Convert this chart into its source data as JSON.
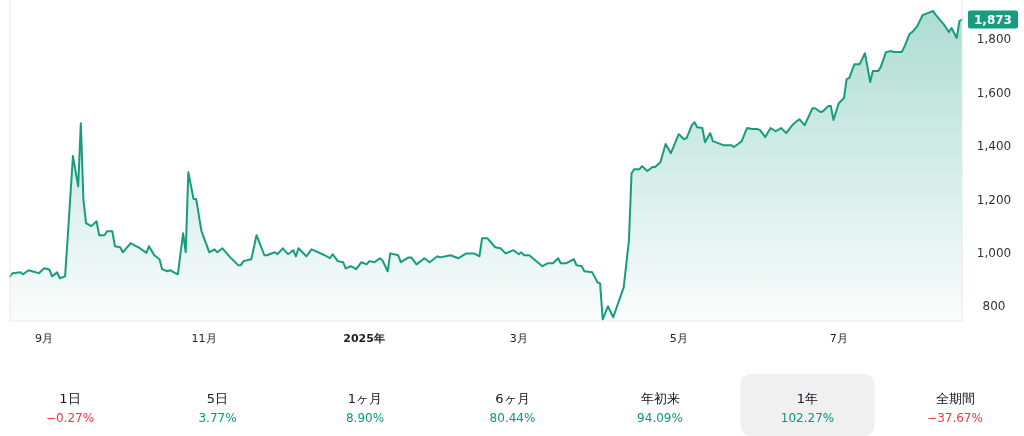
{
  "chart_data": [
    {
      "type": "area",
      "x": [
        "2024-08-19",
        "2024-08-20",
        "2024-08-23",
        "2024-08-24",
        "2024-08-26",
        "2024-08-30",
        "2024-09-01",
        "2024-09-03",
        "2024-09-04",
        "2024-09-06",
        "2024-09-07",
        "2024-09-09",
        "2024-09-10",
        "2024-09-12",
        "2024-09-14",
        "2024-09-15",
        "2024-09-16",
        "2024-09-17",
        "2024-09-19",
        "2024-09-21",
        "2024-09-22",
        "2024-09-24",
        "2024-09-25",
        "2024-09-27",
        "2024-09-28",
        "2024-09-30",
        "2024-10-01",
        "2024-10-04",
        "2024-10-06",
        "2024-10-07",
        "2024-10-10",
        "2024-10-11",
        "2024-10-13",
        "2024-10-15",
        "2024-10-16",
        "2024-10-18",
        "2024-10-19",
        "2024-10-21",
        "2024-10-22",
        "2024-10-24",
        "2024-10-25",
        "2024-10-26",
        "2024-10-28",
        "2024-10-29",
        "2024-10-31",
        "2024-11-03",
        "2024-11-05",
        "2024-11-06",
        "2024-11-08",
        "2024-11-11",
        "2024-11-14",
        "2024-11-15",
        "2024-11-16",
        "2024-11-19",
        "2024-11-21",
        "2024-11-24",
        "2024-11-25",
        "2024-11-28",
        "2024-11-29",
        "2024-12-01",
        "2024-12-03",
        "2024-12-05",
        "2024-12-06",
        "2024-12-07",
        "2024-12-10",
        "2024-12-12",
        "2024-12-17",
        "2024-12-19",
        "2024-12-20",
        "2024-12-22",
        "2024-12-24",
        "2024-12-25",
        "2024-12-27",
        "2024-12-29",
        "2024-12-31",
        "2025-01-02",
        "2025-01-03",
        "2025-01-05",
        "2025-01-07",
        "2025-01-08",
        "2025-01-10",
        "2025-01-11",
        "2025-01-14",
        "2025-01-15",
        "2025-01-18",
        "2025-01-19",
        "2025-01-21",
        "2025-01-24",
        "2025-01-26",
        "2025-01-29",
        "2025-01-30",
        "2025-02-03",
        "2025-02-06",
        "2025-02-09",
        "2025-02-12",
        "2025-02-14",
        "2025-02-15",
        "2025-02-17",
        "2025-02-20",
        "2025-02-22",
        "2025-02-24",
        "2025-02-27",
        "2025-03-01",
        "2025-03-02",
        "2025-03-03",
        "2025-03-05",
        "2025-03-10",
        "2025-03-12",
        "2025-03-14",
        "2025-03-16",
        "2025-03-17",
        "2025-03-19",
        "2025-03-22",
        "2025-03-23",
        "2025-03-25",
        "2025-03-26",
        "2025-03-29",
        "2025-03-31",
        "2025-04-01",
        "2025-04-02",
        "2025-04-04",
        "2025-04-06",
        "2025-04-10",
        "2025-04-12",
        "2025-04-13",
        "2025-04-14",
        "2025-04-16",
        "2025-04-17",
        "2025-04-19",
        "2025-04-21",
        "2025-04-22",
        "2025-04-24",
        "2025-04-26",
        "2025-04-28",
        "2025-05-01",
        "2025-05-03",
        "2025-05-04",
        "2025-05-06",
        "2025-05-07",
        "2025-05-08",
        "2025-05-10",
        "2025-05-11",
        "2025-05-13",
        "2025-05-14",
        "2025-05-18",
        "2025-05-21",
        "2025-05-22",
        "2025-05-24",
        "2025-05-25",
        "2025-05-27",
        "2025-05-29",
        "2025-05-31",
        "2025-06-01",
        "2025-06-03",
        "2025-06-05",
        "2025-06-07",
        "2025-06-09",
        "2025-06-11",
        "2025-06-13",
        "2025-06-14",
        "2025-06-16",
        "2025-06-18",
        "2025-06-21",
        "2025-06-22",
        "2025-06-24",
        "2025-06-25",
        "2025-06-27",
        "2025-06-28",
        "2025-06-29",
        "2025-07-01",
        "2025-07-03",
        "2025-07-04",
        "2025-07-05",
        "2025-07-07",
        "2025-07-09",
        "2025-07-11",
        "2025-07-13",
        "2025-07-14",
        "2025-07-16",
        "2025-07-17",
        "2025-07-19",
        "2025-07-21",
        "2025-07-22",
        "2025-07-25",
        "2025-07-26",
        "2025-07-28",
        "2025-07-29",
        "2025-07-31",
        "2025-08-02",
        "2025-08-03",
        "2025-08-06",
        "2025-08-07",
        "2025-08-09",
        "2025-08-10",
        "2025-08-12",
        "2025-08-13",
        "2025-08-15",
        "2025-08-16",
        "2025-08-17"
      ],
      "series": [
        {
          "color": "#179c7f",
          "values": [
            912,
            924,
            927,
            920,
            935,
            924,
            942,
            938,
            912,
            927,
            905,
            912,
            1058,
            1362,
            1249,
            1485,
            1197,
            1111,
            1100,
            1118,
            1066,
            1066,
            1081,
            1081,
            1025,
            1021,
            1002,
            1036,
            1025,
            1021,
            1000,
            1025,
            991,
            976,
            939,
            931,
            935,
            924,
            920,
            1073,
            1002,
            1302,
            1201,
            1201,
            1081,
            1002,
            1013,
            1002,
            1017,
            983,
            954,
            954,
            969,
            976,
            1066,
            991,
            991,
            1002,
            995,
            1017,
            995,
            1010,
            987,
            1017,
            987,
            1013,
            991,
            980,
            995,
            969,
            965,
            942,
            950,
            939,
            965,
            957,
            969,
            965,
            980,
            972,
            931,
            998,
            991,
            965,
            983,
            983,
            957,
            980,
            965,
            987,
            983,
            991,
            980,
            998,
            998,
            987,
            1055,
            1055,
            1021,
            1017,
            998,
            1010,
            995,
            1002,
            991,
            991,
            950,
            961,
            961,
            980,
            961,
            961,
            976,
            954,
            950,
            931,
            927,
            890,
            886,
            751,
            800,
            759,
            871,
            1047,
            1298,
            1313,
            1313,
            1324,
            1306,
            1321,
            1321,
            1339,
            1407,
            1373,
            1444,
            1425,
            1429,
            1478,
            1489,
            1470,
            1467,
            1414,
            1448,
            1418,
            1403,
            1403,
            1396,
            1410,
            1418,
            1467,
            1463,
            1463,
            1459,
            1433,
            1467,
            1455,
            1467,
            1448,
            1474,
            1485,
            1500,
            1478,
            1541,
            1541,
            1527,
            1530,
            1549,
            1549,
            1497,
            1560,
            1579,
            1650,
            1654,
            1706,
            1706,
            1747,
            1639,
            1680,
            1680,
            1695,
            1751,
            1755,
            1751,
            1751,
            1770,
            1819,
            1826,
            1849,
            1890,
            1893,
            1905,
            1890,
            1867,
            1856,
            1826,
            1841,
            1804,
            1867,
            1873
          ]
        }
      ],
      "xlim": [
        "2024-08-19",
        "2025-08-17"
      ],
      "ylim": [
        745,
        1946
      ],
      "xticks": [
        {
          "value": "2024-09-01",
          "label": "9月"
        },
        {
          "value": "2024-11-01",
          "label": "11月"
        },
        {
          "value": "2025-01-01",
          "label": "2025年"
        },
        {
          "value": "2025-03-01",
          "label": "3月"
        },
        {
          "value": "2025-05-01",
          "label": "5月"
        },
        {
          "value": "2025-07-01",
          "label": "7月"
        }
      ],
      "yticks": [
        800,
        {
          "value": 1000,
          "label": "1,000"
        },
        {
          "value": 1200,
          "label": "1,200"
        },
        {
          "value": 1400,
          "label": "1,400"
        },
        {
          "value": 1600,
          "label": "1,600"
        },
        {
          "value": 1800,
          "label": "1,800"
        }
      ],
      "annotations": [
        {
          "text": "1,873",
          "x": "2025-08-17",
          "y": 1873
        }
      ]
    },
    {
      "type": "other",
      "categories": [
        "1日",
        "5日",
        "1ヶ月",
        "6ヶ月",
        "年初来",
        "1年",
        "全期間"
      ],
      "values": [
        -0.27,
        3.77,
        8.9,
        80.44,
        94.09,
        102.27,
        -37.67
      ],
      "value_labels": [
        "−0.27%",
        "3.77%",
        "8.90%",
        "80.44%",
        "94.09%",
        "102.27%",
        "−37.67%"
      ]
    }
  ]
}
